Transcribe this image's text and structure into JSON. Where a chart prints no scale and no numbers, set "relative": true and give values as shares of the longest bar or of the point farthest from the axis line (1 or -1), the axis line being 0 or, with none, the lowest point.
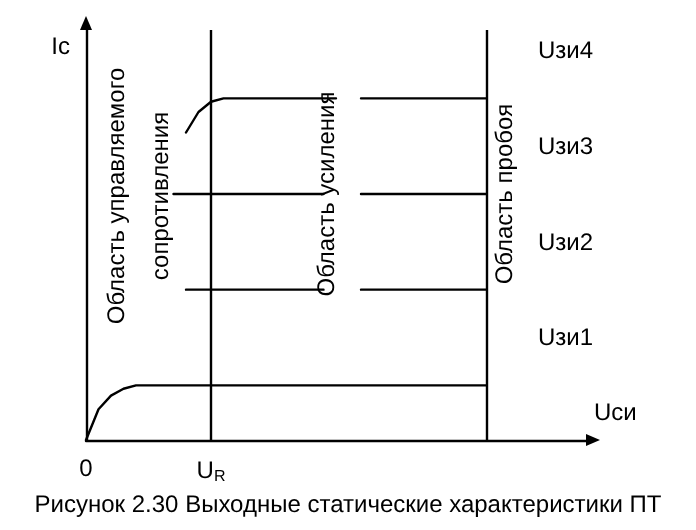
{
  "chart_data": {
    "type": "line",
    "relative": true,
    "xlabel": "Uси",
    "ylabel": "Ic",
    "categories": [
      "0",
      null,
      null,
      null,
      null,
      null,
      null,
      null,
      null,
      null,
      "U$_{R}$",
      null,
      null,
      null,
      null,
      null,
      null,
      null,
      null,
      null,
      null,
      null,
      null,
      null,
      null,
      null,
      null,
      null,
      null,
      null,
      null,
      null,
      null,
      null,
      null,
      null,
      null,
      null,
      null,
      null,
      null
    ],
    "grid": false,
    "legend": false,
    "marker": "none",
    "line_style": "solid",
    "ref_lines": [
      {
        "axis": "x",
        "value": "U$_{R}$",
        "color": "#000000"
      }
    ],
    "annotations": [
      "Область управляемого\nсопротивления",
      "Область усиления",
      "Область пробоя",
      "Рисунок 2.30 Выходные статические характеристики ПТ"
    ],
    "series": [
      {
        "name": "Uзи1",
        "color": "#000000",
        "values": [
          0,
          0.09,
          0.13,
          0.15,
          0.16,
          0.16,
          0.16,
          0.16,
          0.16,
          0.16,
          0.16,
          0.16,
          0.16,
          0.16,
          0.16,
          0.16,
          0.16,
          0.16,
          0.16,
          0.16,
          0.16,
          0.16,
          0.16,
          0.16,
          0.16,
          0.16,
          0.16,
          0.16,
          0.16,
          0.16,
          0.16,
          0.16,
          0.16,
          null,
          null,
          null,
          null,
          null,
          null,
          null,
          null
        ]
      },
      {
        "name": "Uзи2",
        "color": "#000000",
        "values": [
          null,
          null,
          null,
          null,
          null,
          null,
          null,
          null,
          0.44,
          0.44,
          0.44,
          0.44,
          0.44,
          0.44,
          0.44,
          0.44,
          0.44,
          0.44,
          0.44,
          0.44,
          null,
          null,
          0.44,
          0.44,
          0.44,
          0.44,
          0.44,
          0.44,
          0.44,
          0.44,
          0.44,
          0.44,
          0.44,
          null,
          null,
          null,
          null,
          null,
          null,
          null,
          null
        ]
      },
      {
        "name": "Uзи3",
        "color": "#000000",
        "values": [
          null,
          null,
          null,
          null,
          null,
          null,
          null,
          0.72,
          0.72,
          0.72,
          0.72,
          0.72,
          0.72,
          0.72,
          0.72,
          0.72,
          0.72,
          0.72,
          0.72,
          0.72,
          null,
          null,
          0.72,
          0.72,
          0.72,
          0.72,
          0.72,
          0.72,
          0.72,
          0.72,
          0.72,
          0.72,
          0.72,
          null,
          null,
          null,
          null,
          null,
          null,
          null,
          null
        ]
      },
      {
        "name": "Uзи4",
        "color": "#000000",
        "values": [
          null,
          null,
          null,
          null,
          null,
          null,
          null,
          null,
          0.9,
          0.96,
          0.99,
          1,
          1,
          1,
          1,
          1,
          1,
          1,
          1,
          1,
          1,
          null,
          1,
          1,
          1,
          1,
          1,
          1,
          1,
          1,
          1,
          1,
          1,
          null,
          null,
          null,
          null,
          null,
          null,
          null,
          null
        ]
      }
    ]
  }
}
